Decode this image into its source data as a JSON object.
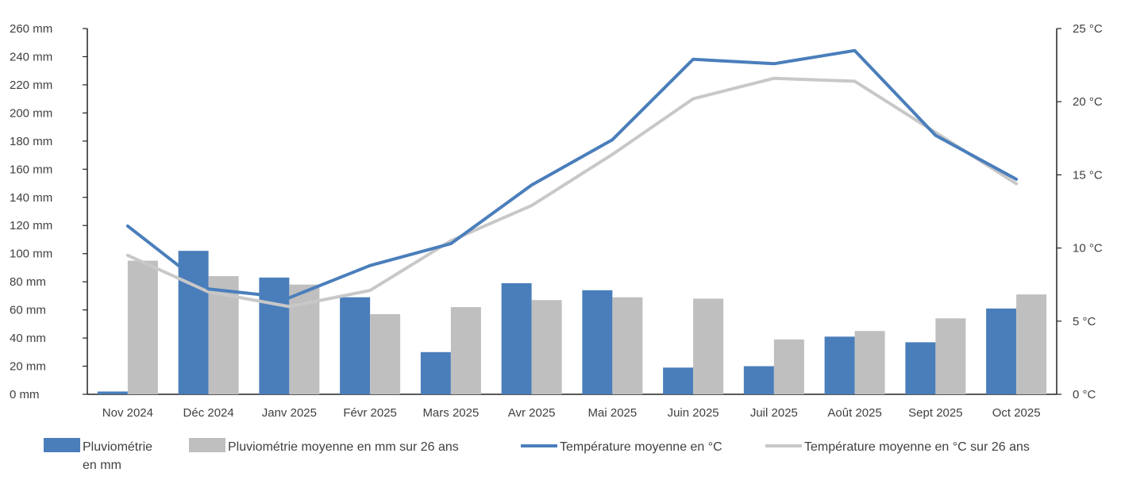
{
  "chart_data": {
    "type": "bar",
    "categories": [
      "Nov 2024",
      "Déc 2024",
      "Janv 2025",
      "Févr 2025",
      "Mars 2025",
      "Avr 2025",
      "Mai 2025",
      "Juin 2025",
      "Juil 2025",
      "Août 2025",
      "Sept 2025",
      "Oct 2025"
    ],
    "y_left": {
      "ticks": [
        "0 mm",
        "20 mm",
        "40 mm",
        "60 mm",
        "80 mm",
        "100 mm",
        "120 mm",
        "140 mm",
        "160 mm",
        "180 mm",
        "200 mm",
        "220 mm",
        "240 mm",
        "260 mm"
      ],
      "ylim": [
        0,
        260
      ]
    },
    "y_right": {
      "ticks": [
        "0 °C",
        "5 °C",
        "10 °C",
        "15 °C",
        "20 °C",
        "25 °C"
      ],
      "ylim": [
        0,
        25
      ]
    },
    "series": [
      {
        "name": "Pluviométrie en mm",
        "type": "bar",
        "axis": "left",
        "color": "#4a7ebb",
        "values": [
          2,
          102,
          83,
          69,
          30,
          79,
          74,
          19,
          20,
          41,
          37,
          61
        ]
      },
      {
        "name": "Pluviométrie moyenne en mm sur 26 ans",
        "type": "bar",
        "axis": "left",
        "color": "#bfbfbf",
        "values": [
          95,
          84,
          78,
          57,
          62,
          67,
          69,
          68,
          39,
          45,
          54,
          71
        ]
      },
      {
        "name": "Température moyenne en °C",
        "type": "line",
        "axis": "right",
        "color": "#4a7ebb",
        "values": [
          11.5,
          7.2,
          6.6,
          8.8,
          10.3,
          14.3,
          17.4,
          22.9,
          22.6,
          23.5,
          17.7,
          14.7
        ]
      },
      {
        "name": "Température moyenne en °C sur 26 ans",
        "type": "line",
        "axis": "right",
        "color": "#c8c8c8",
        "values": [
          9.5,
          7.0,
          6.0,
          7.1,
          10.5,
          12.9,
          16.4,
          20.2,
          21.6,
          21.4,
          17.9,
          14.4
        ]
      }
    ],
    "legend": {
      "position": "bottom",
      "items": [
        {
          "line1": "Pluviométrie",
          "line2": "en mm",
          "swatch": "box",
          "color": "#4a7ebb"
        },
        {
          "line1": "Pluviométrie moyenne en mm sur 26 ans",
          "line2": "",
          "swatch": "box",
          "color": "#bfbfbf"
        },
        {
          "line1": "Température moyenne en °C",
          "line2": "",
          "swatch": "line",
          "color": "#4a7ebb"
        },
        {
          "line1": "Température moyenne en °C sur 26 ans",
          "line2": "",
          "swatch": "line",
          "color": "#c8c8c8"
        }
      ]
    },
    "grid": false
  }
}
